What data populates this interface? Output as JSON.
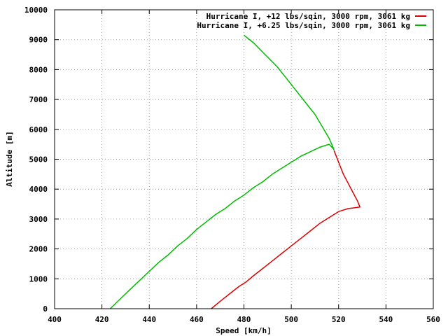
{
  "chart_data": {
    "type": "line",
    "title": "",
    "xlabel": "Speed [km/h]",
    "ylabel": "Altitude [m]",
    "xlim": [
      400,
      560
    ],
    "ylim": [
      0,
      10000
    ],
    "xticks": [
      400,
      420,
      440,
      460,
      480,
      500,
      520,
      540,
      560
    ],
    "yticks": [
      0,
      1000,
      2000,
      3000,
      4000,
      5000,
      6000,
      7000,
      8000,
      9000,
      10000
    ],
    "grid": true,
    "legend_position": "top-right",
    "series": [
      {
        "name": "Hurricane I, +12 lbs/sqin, 3000 rpm, 3061 kg",
        "color": "#dd0000",
        "points": [
          [
            466.2,
            0
          ],
          [
            470,
            250
          ],
          [
            474,
            500
          ],
          [
            478,
            750
          ],
          [
            481,
            900
          ],
          [
            484,
            1100
          ],
          [
            488,
            1350
          ],
          [
            492,
            1600
          ],
          [
            496,
            1850
          ],
          [
            500,
            2100
          ],
          [
            504,
            2350
          ],
          [
            508,
            2600
          ],
          [
            512,
            2850
          ],
          [
            516,
            3050
          ],
          [
            520,
            3250
          ],
          [
            524,
            3350
          ],
          [
            529,
            3400
          ],
          [
            528,
            3600
          ],
          [
            526,
            3900
          ],
          [
            524,
            4200
          ],
          [
            522,
            4500
          ],
          [
            520.5,
            4800
          ],
          [
            519,
            5100
          ],
          [
            518,
            5300
          ]
        ]
      },
      {
        "name": "Hurricane I, +6.25 lbs/sqin, 3000 rpm, 3061 kg",
        "color": "#00bb00",
        "points": [
          [
            423.5,
            0
          ],
          [
            428,
            350
          ],
          [
            432,
            650
          ],
          [
            436,
            950
          ],
          [
            440,
            1250
          ],
          [
            444,
            1550
          ],
          [
            448,
            1800
          ],
          [
            452,
            2100
          ],
          [
            456,
            2350
          ],
          [
            460,
            2650
          ],
          [
            464,
            2900
          ],
          [
            468,
            3150
          ],
          [
            472,
            3350
          ],
          [
            476,
            3600
          ],
          [
            480,
            3800
          ],
          [
            484,
            4050
          ],
          [
            488,
            4250
          ],
          [
            492,
            4500
          ],
          [
            496,
            4700
          ],
          [
            500,
            4900
          ],
          [
            504,
            5100
          ],
          [
            508,
            5250
          ],
          [
            512,
            5400
          ],
          [
            516,
            5500
          ],
          [
            518,
            5330
          ],
          [
            516,
            5700
          ],
          [
            513,
            6100
          ],
          [
            510,
            6500
          ],
          [
            506,
            6900
          ],
          [
            502,
            7300
          ],
          [
            498,
            7700
          ],
          [
            494,
            8100
          ],
          [
            489,
            8500
          ],
          [
            484,
            8900
          ],
          [
            480,
            9150
          ]
        ]
      }
    ]
  }
}
